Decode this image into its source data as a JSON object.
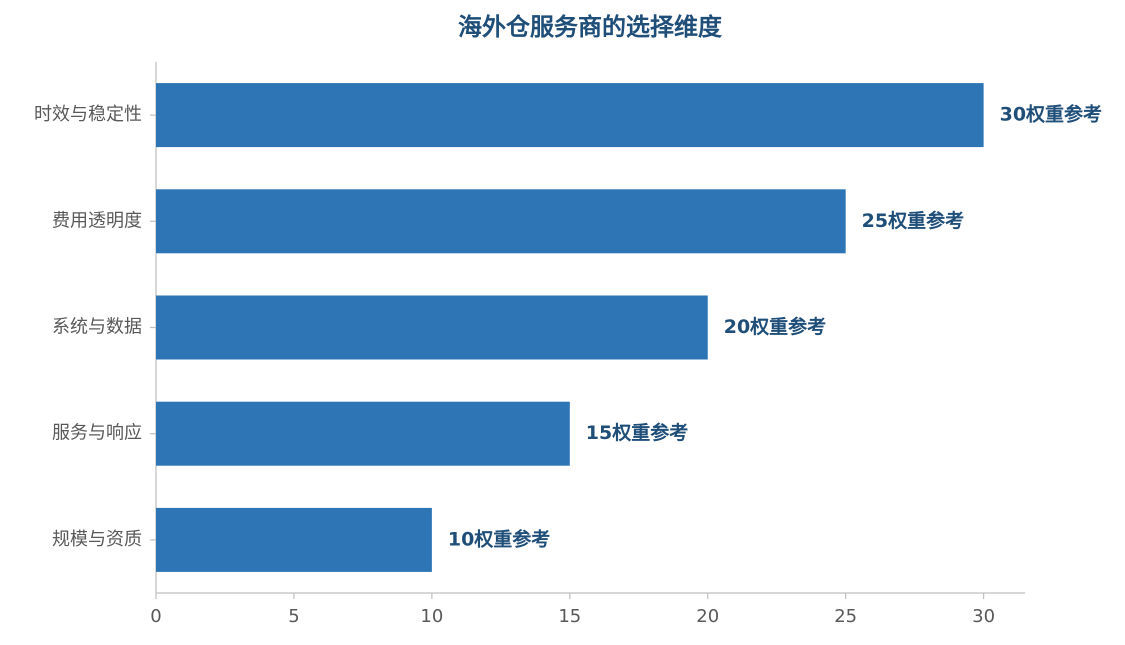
{
  "chart_data": {
    "type": "barh",
    "title": "海外仓服务商的选择维度",
    "categories": [
      "时效与稳定性",
      "费用透明度",
      "系统与数据",
      "服务与响应",
      "规模与资质"
    ],
    "values": [
      30,
      25,
      20,
      15,
      10
    ],
    "value_labels": [
      "30权重参考",
      "25权重参考",
      "20权重参考",
      "15权重参考",
      "10权重参考"
    ],
    "color": "#2e75b6",
    "xlim": [
      0,
      31.5
    ],
    "xticks": [
      0,
      5,
      10,
      15,
      20,
      25,
      30
    ],
    "grid": false
  }
}
